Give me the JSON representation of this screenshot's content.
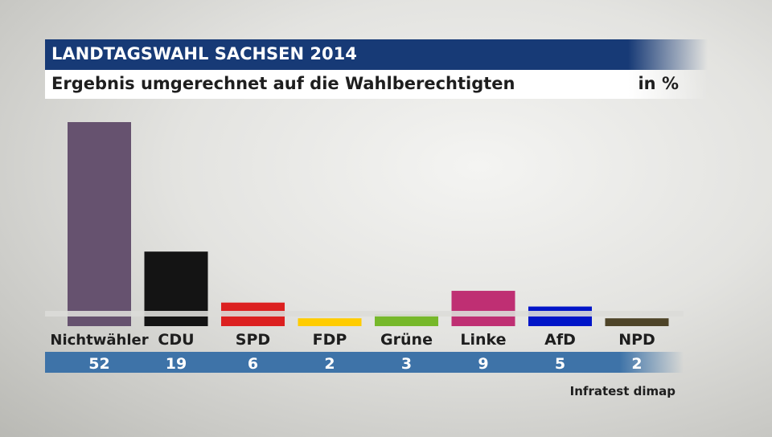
{
  "header": {
    "title": "LANDTAGSWAHL SACHSEN 2014",
    "subtitle": "Ergebnis umgerechnet auf die Wahlberechtigten",
    "unit": "in %"
  },
  "source": "Infratest dimap",
  "colors": {
    "title_bar": "#173a76",
    "values_bar": "#3e73a8"
  },
  "chart_data": {
    "type": "bar",
    "categories": [
      "Nichtwähler",
      "CDU",
      "SPD",
      "FDP",
      "Grüne",
      "Linke",
      "AfD",
      "NPD"
    ],
    "values": [
      52,
      19,
      6,
      2,
      3,
      9,
      5,
      2
    ],
    "value_labels": [
      "52",
      "19",
      "6",
      "2",
      "3",
      "9",
      "5",
      "2"
    ],
    "colors": [
      "#66526f",
      "#141414",
      "#dc2020",
      "#ffcc00",
      "#76b82a",
      "#bf2f73",
      "#0015c8",
      "#4e4428"
    ],
    "title": "LANDTAGSWAHL SACHSEN 2014",
    "subtitle": "Ergebnis umgerechnet auf die Wahlberechtigten",
    "xlabel": "",
    "ylabel": "in %",
    "ylim": [
      0,
      52
    ],
    "grid": false,
    "legend": "none"
  }
}
